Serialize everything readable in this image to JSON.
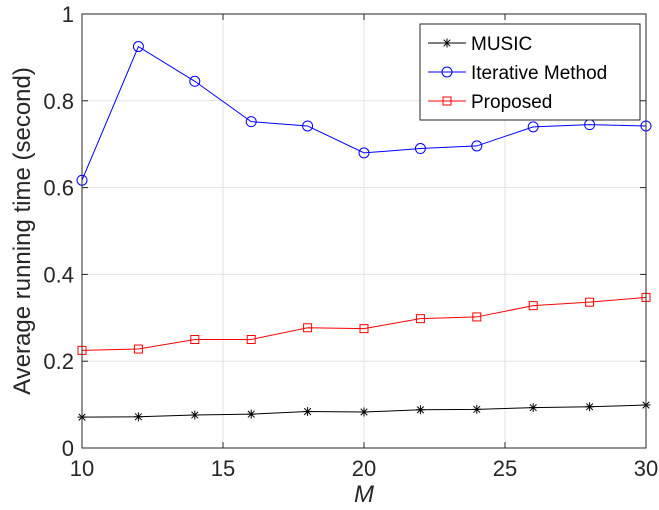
{
  "chart_data": {
    "type": "line",
    "x": [
      10,
      12,
      14,
      16,
      18,
      20,
      22,
      24,
      26,
      28,
      30
    ],
    "xlabel": "M",
    "ylabel": "Average running time (second)",
    "xlim": [
      10,
      30
    ],
    "ylim": [
      0,
      1
    ],
    "xticks": [
      10,
      15,
      20,
      25,
      30
    ],
    "yticks": [
      0,
      0.2,
      0.4,
      0.6,
      0.8,
      1
    ],
    "xtick_labels": [
      "10",
      "15",
      "20",
      "25",
      "30"
    ],
    "ytick_labels": [
      "0",
      "0.2",
      "0.4",
      "0.6",
      "0.8",
      "1"
    ],
    "grid": true,
    "legend_position": "top-right",
    "series": [
      {
        "name": "MUSIC",
        "color": "#000000",
        "marker": "asterisk",
        "values": [
          0.071,
          0.072,
          0.076,
          0.078,
          0.084,
          0.083,
          0.088,
          0.089,
          0.093,
          0.095,
          0.099
        ]
      },
      {
        "name": "Iterative Method",
        "color": "#0000ff",
        "marker": "circle",
        "values": [
          0.617,
          0.925,
          0.845,
          0.752,
          0.742,
          0.68,
          0.69,
          0.696,
          0.74,
          0.745,
          0.742
        ]
      },
      {
        "name": "Proposed",
        "color": "#ff0000",
        "marker": "square",
        "values": [
          0.225,
          0.228,
          0.25,
          0.25,
          0.277,
          0.275,
          0.298,
          0.302,
          0.328,
          0.336,
          0.347
        ]
      }
    ]
  }
}
